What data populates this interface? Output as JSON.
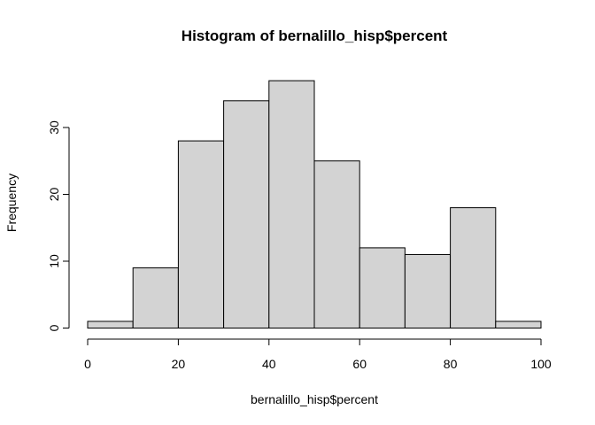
{
  "chart_data": {
    "type": "bar",
    "title": "Histogram of bernalillo_hisp$percent",
    "xlabel": "bernalillo_hisp$percent",
    "ylabel": "Frequency",
    "bins": [
      {
        "start": 0,
        "end": 10,
        "count": 1
      },
      {
        "start": 10,
        "end": 20,
        "count": 9
      },
      {
        "start": 20,
        "end": 30,
        "count": 28
      },
      {
        "start": 30,
        "end": 40,
        "count": 34
      },
      {
        "start": 40,
        "end": 50,
        "count": 37
      },
      {
        "start": 50,
        "end": 60,
        "count": 25
      },
      {
        "start": 60,
        "end": 70,
        "count": 12
      },
      {
        "start": 70,
        "end": 80,
        "count": 11
      },
      {
        "start": 80,
        "end": 90,
        "count": 18
      },
      {
        "start": 90,
        "end": 100,
        "count": 1
      }
    ],
    "xlim": [
      0,
      100
    ],
    "ylim": [
      0,
      37
    ],
    "x_ticks": [
      "0",
      "20",
      "40",
      "60",
      "80",
      "100"
    ],
    "y_ticks": [
      "0",
      "10",
      "20",
      "30"
    ],
    "bar_color": "#d3d3d3",
    "grid": false,
    "legend": "none"
  }
}
